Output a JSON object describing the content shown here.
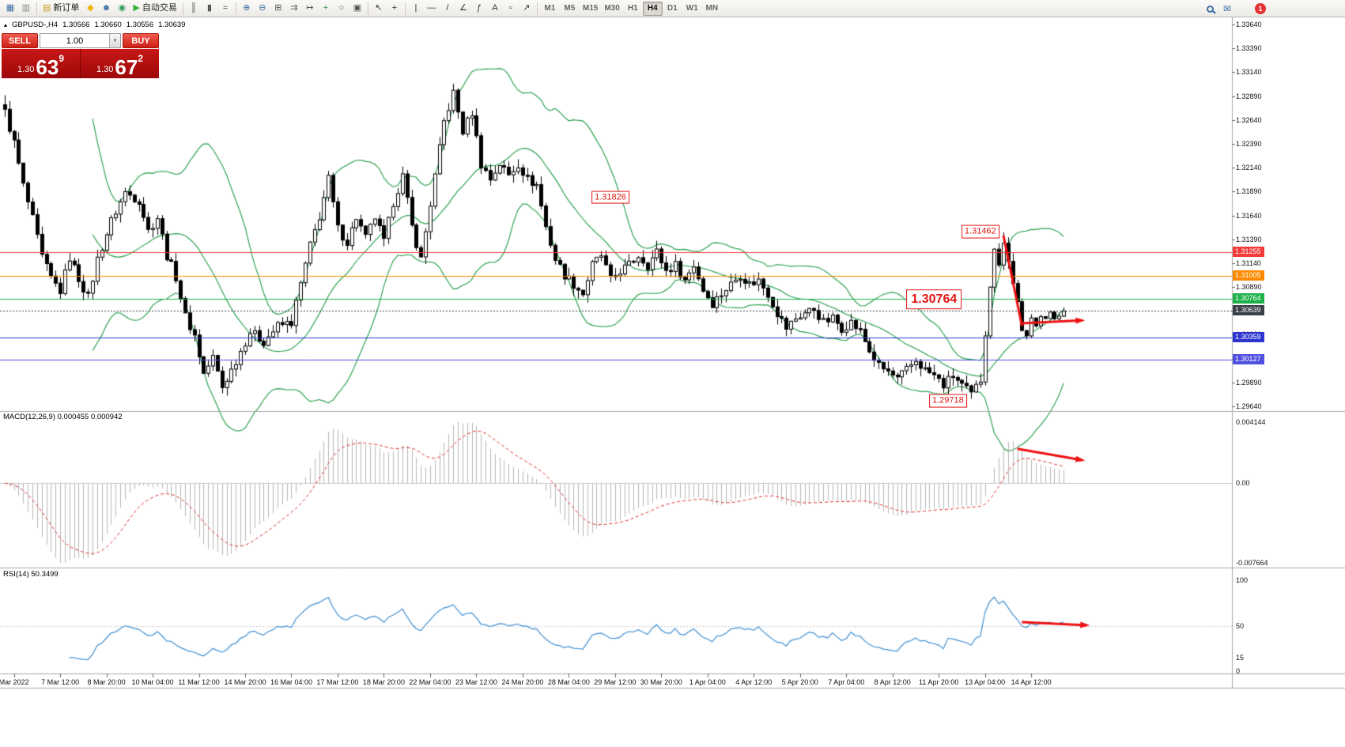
{
  "colors": {
    "chart_bg": "#ffffff",
    "bull": "#ffffff",
    "bear": "#000000",
    "outline": "#000000",
    "bands": "#1e9c45",
    "macd_hist": "#b6b6b6",
    "macd_signal": "#e03030",
    "rsi_line": "#3f8fd2",
    "arrow": "#ee1212",
    "separator": "#a8a8a8"
  },
  "toolbar": {
    "items": [
      {
        "name": "new-chart-icon",
        "glyph": "▦",
        "color": "#3b6ea5"
      },
      {
        "name": "profiles-icon",
        "glyph": "▥",
        "color": "#888888"
      },
      {
        "name": "sep"
      },
      {
        "name": "new-order-button",
        "glyph": "▤",
        "label": "新订单",
        "color": "#c8a028"
      },
      {
        "name": "mql5-icon",
        "glyph": "◆",
        "color": "#e8b400"
      },
      {
        "name": "community-icon",
        "glyph": "☻",
        "color": "#3b6ea5"
      },
      {
        "name": "news-icon",
        "glyph": "◉",
        "color": "#2e9b57"
      },
      {
        "name": "autotrading-button",
        "glyph": "▶",
        "label": "自动交易",
        "color": "#35b335"
      },
      {
        "name": "sep"
      },
      {
        "name": "bar-chart-icon",
        "glyph": "║",
        "color": "#555555"
      },
      {
        "name": "candle-chart-icon",
        "glyph": "▮",
        "color": "#555555"
      },
      {
        "name": "line-chart-icon",
        "glyph": "≈",
        "color": "#555555"
      },
      {
        "name": "sep"
      },
      {
        "name": "zoom-in-icon",
        "glyph": "⊕",
        "color": "#3b6ea5"
      },
      {
        "name": "zoom-out-icon",
        "glyph": "⊖",
        "color": "#3b6ea5"
      },
      {
        "name": "tile-windows-icon",
        "glyph": "⊞",
        "color": "#555555"
      },
      {
        "name": "auto-scroll-icon",
        "glyph": "⇉",
        "color": "#555555"
      },
      {
        "name": "chart-shift-icon",
        "glyph": "↦",
        "color": "#555555"
      },
      {
        "name": "indicators-icon",
        "glyph": "+",
        "color": "#2e9b57"
      },
      {
        "name": "periods-icon",
        "glyph": "○",
        "color": "#555555"
      },
      {
        "name": "templates-icon",
        "glyph": "▣",
        "color": "#555555"
      },
      {
        "name": "sep"
      },
      {
        "name": "cursor-icon",
        "glyph": "↖",
        "color": "#333333"
      },
      {
        "name": "crosshair-icon",
        "glyph": "+",
        "color": "#333333"
      },
      {
        "name": "sep"
      },
      {
        "name": "vertical-line-icon",
        "glyph": "|",
        "color": "#333333"
      },
      {
        "name": "horizontal-line-icon",
        "glyph": "—",
        "color": "#333333"
      },
      {
        "name": "trendline-icon",
        "glyph": "/",
        "color": "#333333"
      },
      {
        "name": "channel-icon",
        "glyph": "∠",
        "color": "#333333"
      },
      {
        "name": "fibonacci-icon",
        "glyph": "ƒ",
        "color": "#333333"
      },
      {
        "name": "text-icon",
        "glyph": "A",
        "color": "#333333"
      },
      {
        "name": "label-icon",
        "glyph": "▫",
        "color": "#333333"
      },
      {
        "name": "arrows-icon",
        "glyph": "↗",
        "color": "#333333"
      },
      {
        "name": "sep"
      }
    ],
    "timeframes": [
      "M1",
      "M5",
      "M15",
      "M30",
      "H1",
      "H4",
      "D1",
      "W1",
      "MN"
    ],
    "active_timeframe": "H4",
    "notification_count": "1"
  },
  "quote_header": {
    "symbol": "GBPUSD-,H4",
    "open": "1.30566",
    "high": "1.30660",
    "low": "1.30556",
    "close": "1.30639"
  },
  "trade_panel": {
    "sell_label": "SELL",
    "buy_label": "BUY",
    "volume": "1.00",
    "sell_price_main": "1.30",
    "sell_price_big": "63",
    "sell_price_sup": "9",
    "buy_price_main": "1.30",
    "buy_price_big": "67",
    "buy_price_sup": "2"
  },
  "indicator_labels": {
    "macd": "MACD(12,26,9) 0.000455 0.000942",
    "rsi": "RSI(14) 50.3499"
  },
  "axes": {
    "price_labels": [
      "1.33640",
      "1.33390",
      "1.33140",
      "1.32890",
      "1.32640",
      "1.32390",
      "1.32140",
      "1.31890",
      "1.31640",
      "1.31390",
      "1.31140",
      "1.30890",
      "1.30640",
      "1.30390",
      "1.30140",
      "1.29890",
      "1.29640"
    ],
    "macd_labels": [
      {
        "text": "0.004144",
        "pos": "top"
      },
      {
        "text": "0.00",
        "pos": "zero"
      },
      {
        "text": "-0.007664",
        "pos": "bottom"
      }
    ],
    "rsi_labels": [
      {
        "text": "100",
        "value": 100
      },
      {
        "text": "50",
        "value": 50
      },
      {
        "text": "15",
        "value": 15
      },
      {
        "text": "0",
        "value": 0
      }
    ],
    "time_labels": [
      "Mar 2022",
      "7 Mar 12:00",
      "8 Mar 20:00",
      "10 Mar 04:00",
      "11 Mar 12:00",
      "14 Mar 20:00",
      "16 Mar 04:00",
      "17 Mar 12:00",
      "18 Mar 20:00",
      "22 Mar 04:00",
      "23 Mar 12:00",
      "24 Mar 20:00",
      "28 Mar 04:00",
      "29 Mar 12:00",
      "30 Mar 20:00",
      "1 Apr 04:00",
      "4 Apr 12:00",
      "5 Apr 20:00",
      "7 Apr 04:00",
      "8 Apr 12:00",
      "11 Apr 20:00",
      "13 Apr 04:00",
      "14 Apr 12:00"
    ]
  },
  "hlines": [
    {
      "price": 1.31255,
      "label": "1.31255",
      "color": "#f43b3b",
      "style": "solid"
    },
    {
      "price": 1.31005,
      "label": "1.31005",
      "color": "#ff8a00",
      "style": "solid"
    },
    {
      "price": 1.30764,
      "label": "1.30764",
      "color": "#1db24a",
      "style": "solid"
    },
    {
      "price": 1.30639,
      "label": "1.30639",
      "color": "#3a3f4b",
      "style": "dotted"
    },
    {
      "price": 1.30359,
      "label": "1.30359",
      "color": "#2d35cf",
      "style": "solid"
    },
    {
      "price": 1.30127,
      "label": "1.30127",
      "color": "#5050e0",
      "style": "solid"
    }
  ],
  "annotations": {
    "price_labels": [
      {
        "text": "1.31826",
        "bar": 131,
        "price": 1.3183,
        "size": "small"
      },
      {
        "text": "1.31462",
        "bar": 211,
        "price": 1.3147,
        "size": "small"
      },
      {
        "text": "1.30764",
        "bar": 201,
        "price": 1.3076,
        "size": "large"
      },
      {
        "text": "1.29718",
        "bar": 204,
        "price": 1.297,
        "size": "small"
      }
    ],
    "arrows": [
      {
        "panel": "main",
        "from": [
          216,
          1.3143
        ],
        "to": [
          220,
          1.3048
        ],
        "head": false
      },
      {
        "panel": "main",
        "from": [
          220,
          1.3051
        ],
        "to": [
          233,
          1.3054
        ],
        "head": true
      },
      {
        "panel": "macd",
        "from": [
          219,
          0.19
        ],
        "to": [
          233,
          0.27
        ],
        "head": true
      },
      {
        "panel": "rsi",
        "from": [
          220,
          54
        ],
        "to": [
          234,
          50.5
        ],
        "head": true
      }
    ]
  },
  "chart_data": {
    "type": "candlestick",
    "symbol": "GBPUSD-",
    "timeframe": "H4",
    "count": 230,
    "ylim": [
      1.2964,
      1.3364
    ],
    "last_close": 1.30639,
    "marked_high": 1.31462,
    "marked_low": 1.29718,
    "close_anchors": [
      [
        0,
        1.3272
      ],
      [
        2,
        1.324
      ],
      [
        4,
        1.3195
      ],
      [
        6,
        1.316
      ],
      [
        8,
        1.312
      ],
      [
        10,
        1.3098
      ],
      [
        12,
        1.3085
      ],
      [
        14,
        1.312
      ],
      [
        16,
        1.3098
      ],
      [
        18,
        1.3078
      ],
      [
        20,
        1.3118
      ],
      [
        23,
        1.3158
      ],
      [
        26,
        1.3188
      ],
      [
        29,
        1.318
      ],
      [
        31,
        1.3148
      ],
      [
        33,
        1.3162
      ],
      [
        35,
        1.3122
      ],
      [
        37,
        1.31
      ],
      [
        39,
        1.3058
      ],
      [
        41,
        1.3038
      ],
      [
        43,
        1.2998
      ],
      [
        45,
        1.3015
      ],
      [
        47,
        1.2984
      ],
      [
        49,
        1.3002
      ],
      [
        51,
        1.3022
      ],
      [
        53,
        1.3042
      ],
      [
        56,
        1.3032
      ],
      [
        59,
        1.3048
      ],
      [
        62,
        1.3052
      ],
      [
        64,
        1.3092
      ],
      [
        66,
        1.3132
      ],
      [
        68,
        1.3163
      ],
      [
        70,
        1.3202
      ],
      [
        72,
        1.315
      ],
      [
        74,
        1.3136
      ],
      [
        76,
        1.3162
      ],
      [
        78,
        1.314
      ],
      [
        80,
        1.3162
      ],
      [
        82,
        1.3136
      ],
      [
        84,
        1.3178
      ],
      [
        86,
        1.3205
      ],
      [
        88,
        1.3152
      ],
      [
        90,
        1.3118
      ],
      [
        93,
        1.3205
      ],
      [
        95,
        1.3262
      ],
      [
        97,
        1.3292
      ],
      [
        99,
        1.3252
      ],
      [
        101,
        1.3272
      ],
      [
        103,
        1.3218
      ],
      [
        105,
        1.3202
      ],
      [
        107,
        1.3218
      ],
      [
        109,
        1.3206
      ],
      [
        111,
        1.3218
      ],
      [
        113,
        1.3202
      ],
      [
        115,
        1.3196
      ],
      [
        117,
        1.3152
      ],
      [
        119,
        1.3118
      ],
      [
        121,
        1.3102
      ],
      [
        123,
        1.3092
      ],
      [
        125,
        1.3082
      ],
      [
        127,
        1.3112
      ],
      [
        129,
        1.3122
      ],
      [
        131,
        1.3096
      ],
      [
        133,
        1.3106
      ],
      [
        135,
        1.3112
      ],
      [
        137,
        1.3122
      ],
      [
        139,
        1.3112
      ],
      [
        141,
        1.3126
      ],
      [
        143,
        1.3106
      ],
      [
        145,
        1.3112
      ],
      [
        147,
        1.3096
      ],
      [
        149,
        1.3112
      ],
      [
        151,
        1.3086
      ],
      [
        153,
        1.3072
      ],
      [
        155,
        1.3082
      ],
      [
        157,
        1.3092
      ],
      [
        159,
        1.3102
      ],
      [
        161,
        1.3092
      ],
      [
        163,
        1.3096
      ],
      [
        165,
        1.3082
      ],
      [
        167,
        1.3062
      ],
      [
        169,
        1.3046
      ],
      [
        171,
        1.3056
      ],
      [
        173,
        1.3062
      ],
      [
        175,
        1.3066
      ],
      [
        177,
        1.3052
      ],
      [
        179,
        1.3056
      ],
      [
        181,
        1.3046
      ],
      [
        183,
        1.3052
      ],
      [
        185,
        1.3042
      ],
      [
        187,
        1.3022
      ],
      [
        189,
        1.3006
      ],
      [
        191,
        1.3
      ],
      [
        193,
        1.2992
      ],
      [
        195,
        1.3002
      ],
      [
        197,
        1.3012
      ],
      [
        199,
        1.3002
      ],
      [
        201,
        1.2996
      ],
      [
        203,
        1.2986
      ],
      [
        205,
        1.2996
      ],
      [
        207,
        1.2986
      ],
      [
        209,
        1.2976
      ],
      [
        211,
        1.2992
      ],
      [
        212,
        1.3042
      ],
      [
        213,
        1.3092
      ],
      [
        214,
        1.3126
      ],
      [
        215,
        1.3116
      ],
      [
        216,
        1.3138
      ],
      [
        217,
        1.3116
      ],
      [
        218,
        1.3092
      ],
      [
        219,
        1.3076
      ],
      [
        220,
        1.3042
      ],
      [
        221,
        1.3036
      ],
      [
        222,
        1.3056
      ],
      [
        223,
        1.305
      ],
      [
        224,
        1.306
      ],
      [
        225,
        1.3056
      ],
      [
        226,
        1.3061
      ],
      [
        227,
        1.3056
      ],
      [
        228,
        1.306
      ],
      [
        229,
        1.30639
      ]
    ],
    "overrides": [
      {
        "i": 0,
        "h": 1.329
      },
      {
        "i": 97,
        "h": 1.3302
      },
      {
        "i": 209,
        "l": 1.29718
      },
      {
        "i": 216,
        "h": 1.31462
      }
    ],
    "bollinger": {
      "period": 20,
      "deviation": 2
    },
    "macd": {
      "fast": 12,
      "slow": 26,
      "signal": 9,
      "values": [
        0.000455,
        0.000942
      ]
    },
    "rsi": {
      "period": 14,
      "value": 50.3499
    }
  }
}
